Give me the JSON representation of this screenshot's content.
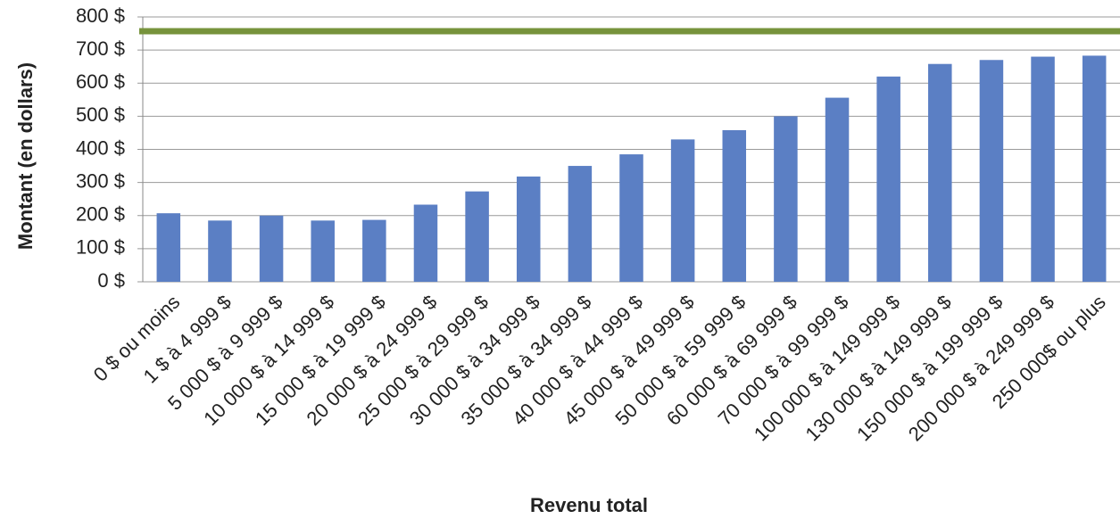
{
  "chart_data": {
    "type": "bar",
    "y_axis_label": "Montant (en dollars)",
    "x_axis_label": "Revenu total",
    "categories": [
      "0 $ ou moins",
      "1 $ à 4 999 $",
      "5 000 $ à 9 999 $",
      "10 000 $ à 14 999 $",
      "15 000 $ à 19 999 $",
      "20 000 $ à 24 999 $",
      "25 000 $ à 29 999 $",
      "30 000 $ à 34 999 $",
      "35 000 $ à 34 999 $",
      "40 000 $ à 44 999 $",
      "45 000 $ à 49 999 $",
      "50 000 $ à 59 999 $",
      "60 000 $ à 69 999 $",
      "70 000 $ à 99 999 $",
      "100 000 $ à 149 999 $",
      "130 000 $ à 149 999 $",
      "150 000 $ à 199 999 $",
      "200 000 $ à 249 999 $",
      "250 000$ ou plus"
    ],
    "values": [
      207,
      185,
      200,
      185,
      187,
      233,
      273,
      318,
      350,
      385,
      430,
      458,
      500,
      556,
      620,
      658,
      670,
      680,
      683
    ],
    "color": "#5b7fc4",
    "reference_line": {
      "value": 757,
      "color": "#77933c"
    },
    "ylim": [
      0,
      800
    ],
    "yticks": [
      {
        "value": 0,
        "label": "0 $"
      },
      {
        "value": 100,
        "label": "100 $"
      },
      {
        "value": 200,
        "label": "200 $"
      },
      {
        "value": 300,
        "label": "300 $"
      },
      {
        "value": 400,
        "label": "400 $"
      },
      {
        "value": 500,
        "label": "500 $"
      },
      {
        "value": 600,
        "label": "600 $"
      },
      {
        "value": 700,
        "label": "700 $"
      },
      {
        "value": 800,
        "label": "800 $"
      }
    ],
    "grid": true
  }
}
